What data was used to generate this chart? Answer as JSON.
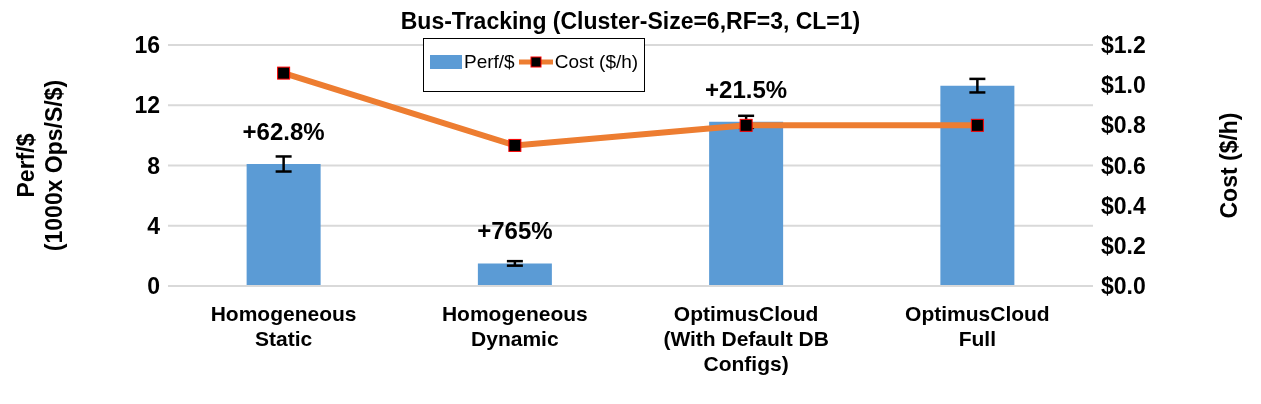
{
  "chart_data": {
    "type": "bar",
    "title": "Bus-Tracking (Cluster-Size=6,RF=3, CL=1)",
    "ylabel": "Perf/$ (1000x Ops/S/$)",
    "y2label": "Cost ($/h)",
    "categories": [
      "Homogeneous Static",
      "Homogeneous Dynamic",
      "OptimusCloud (With Default DB Configs)",
      "OptimusCloud Full"
    ],
    "series": [
      {
        "name": "Perf/$",
        "color": "#5b9bd5",
        "values": [
          8.1,
          1.5,
          10.9,
          13.3
        ],
        "errors": [
          0.5,
          0.15,
          0.4,
          0.45
        ]
      },
      {
        "name": "Cost ($/h)",
        "type": "line",
        "axis": "y2",
        "color": "#ed7d31",
        "values": [
          1.06,
          0.7,
          0.8,
          0.8
        ],
        "marker": "square"
      }
    ],
    "ylim": [
      0,
      16
    ],
    "yticks": [
      0,
      4,
      8,
      12,
      16
    ],
    "y2lim": [
      0,
      1.2
    ],
    "y2ticks": [
      {
        "value": 0,
        "label": "$0.0"
      },
      {
        "value": 0.2,
        "label": "$0.2"
      },
      {
        "value": 0.4,
        "label": "$0.4"
      },
      {
        "value": 0.6,
        "label": "$0.6"
      },
      {
        "value": 0.8,
        "label": "$0.8"
      },
      {
        "value": 1.0,
        "label": "$1.0"
      },
      {
        "value": 1.2,
        "label": "$1.2"
      }
    ],
    "annotations": [
      {
        "text": "+62.8%",
        "x": "Homogeneous Static",
        "y": 8.1
      },
      {
        "text": "+765%",
        "x": "Homogeneous Dynamic",
        "y": 1.5
      },
      {
        "text": "+21.5%",
        "x": "OptimusCloud (With Default DB Configs)",
        "y": 10.9
      }
    ],
    "grid": "y",
    "legend": "top"
  }
}
